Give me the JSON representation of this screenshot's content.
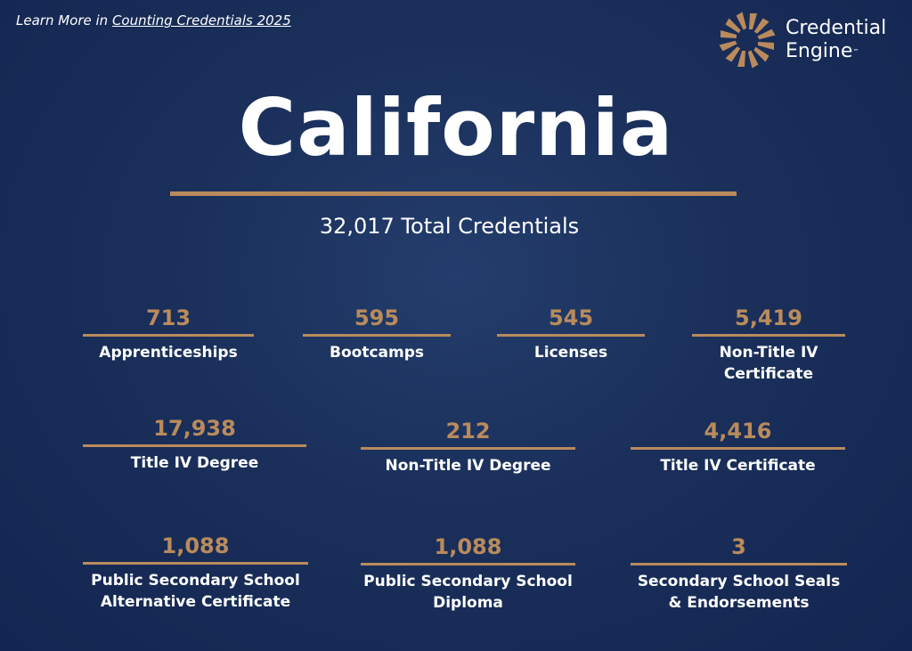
{
  "header": {
    "learn_prefix": "Learn More in ",
    "learn_link": "Counting Credentials 2025"
  },
  "logo": {
    "line1": "Credential",
    "line2": "Engine",
    "trademark": "™",
    "icon": "pinwheel-logo-icon"
  },
  "title": "California",
  "total": "32,017 Total Credentials",
  "stats": [
    {
      "value": "713",
      "label": "Apprenticeships"
    },
    {
      "value": "595",
      "label": "Bootcamps"
    },
    {
      "value": "545",
      "label": "Licenses"
    },
    {
      "value": "5,419",
      "label": "Non-Title IV\nCertificate"
    },
    {
      "value": "17,938",
      "label": "Title IV Degree"
    },
    {
      "value": "212",
      "label": "Non-Title IV Degree"
    },
    {
      "value": "4,416",
      "label": "Title IV Certificate"
    },
    {
      "value": "1,088",
      "label": "Public Secondary School\nAlternative Certificate"
    },
    {
      "value": "1,088",
      "label": "Public Secondary School\nDiploma"
    },
    {
      "value": "3",
      "label": "Secondary School Seals\n& Endorsements"
    }
  ],
  "colors": {
    "background": "#1a2f5a",
    "accent": "#b98b5c",
    "text": "#ffffff"
  }
}
